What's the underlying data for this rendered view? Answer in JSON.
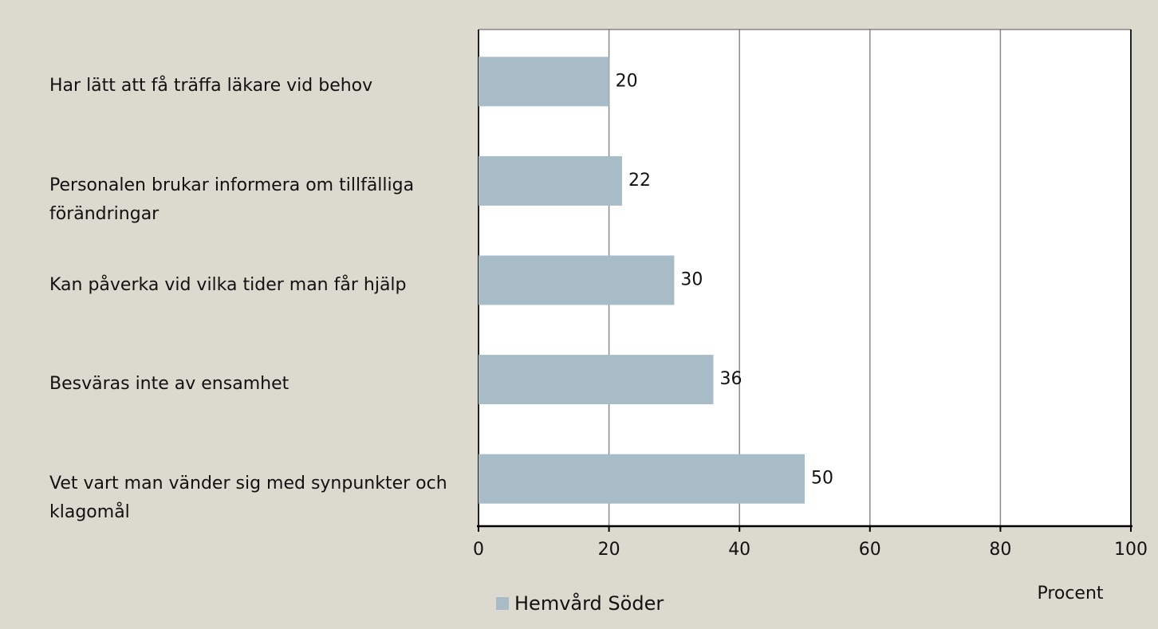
{
  "chart_data": {
    "type": "barh",
    "categories": [
      "Har lätt att få träffa läkare vid behov",
      "Personalen brukar informera om tillfälliga förändringar",
      "Kan påverka vid vilka tider man får hjälp",
      "Besväras inte av ensamhet",
      "Vet vart man vänder sig med synpunkter och klagomål"
    ],
    "series": [
      {
        "name": "Hemvård Söder",
        "color": "#a8bcc8",
        "values": [
          20,
          22,
          30,
          36,
          50
        ]
      }
    ],
    "xlabel": "Procent",
    "xlim": [
      0,
      100
    ],
    "xticks": [
      0,
      20,
      40,
      60,
      80,
      100
    ],
    "grid": true,
    "legend": "bottom"
  }
}
